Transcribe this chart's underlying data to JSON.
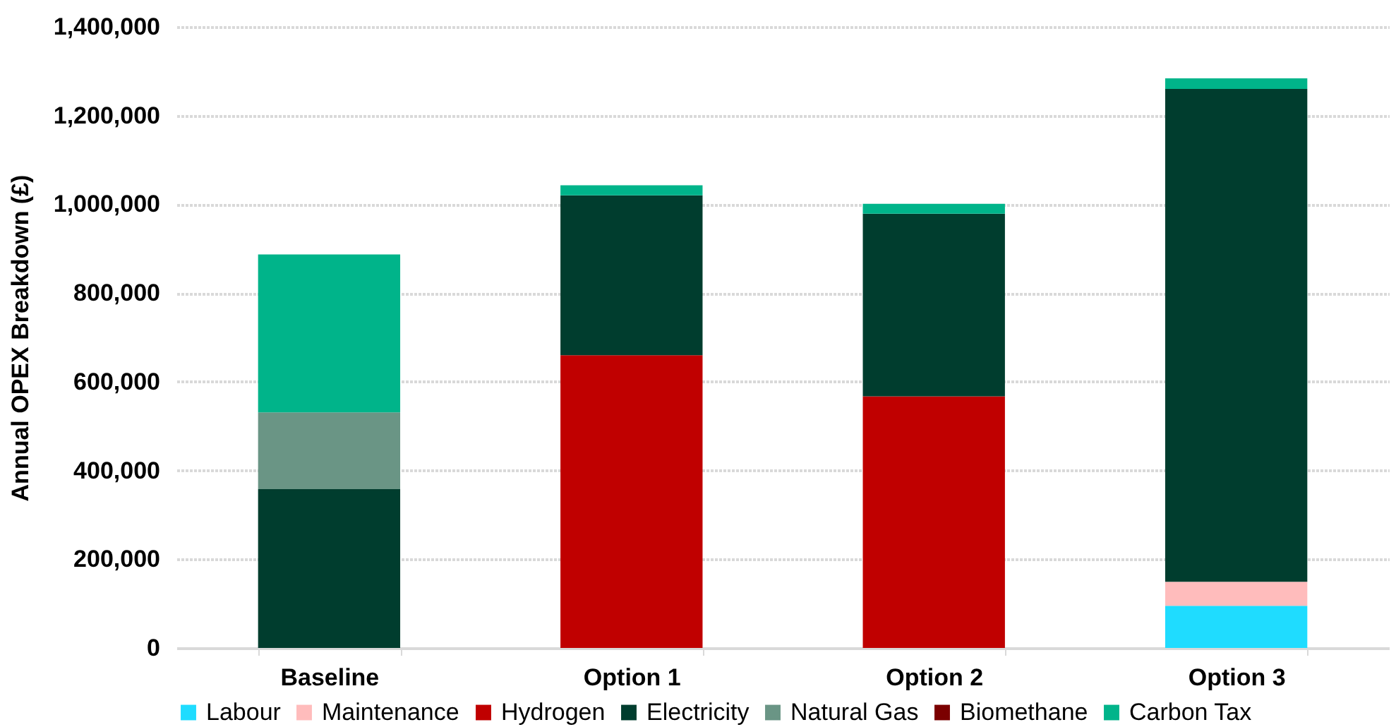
{
  "chart_data": {
    "type": "bar",
    "stacked": true,
    "ylabel": "Annual OPEX Breakdown (£)",
    "categories": [
      "Baseline",
      "Option 1",
      "Option 2",
      "Option 3"
    ],
    "series": [
      {
        "name": "Labour",
        "color": "#1fdcff",
        "values": [
          0,
          0,
          0,
          95000
        ]
      },
      {
        "name": "Maintenance",
        "color": "#ffbcbc",
        "values": [
          0,
          0,
          0,
          54000
        ]
      },
      {
        "name": "Hydrogen",
        "color": "#c00000",
        "values": [
          0,
          660000,
          567000,
          0
        ]
      },
      {
        "name": "Electricity",
        "color": "#003d2e",
        "values": [
          358000,
          360000,
          412000,
          1111000
        ]
      },
      {
        "name": "Natural Gas",
        "color": "#6a9585",
        "values": [
          173000,
          0,
          0,
          0
        ]
      },
      {
        "name": "Biomethane",
        "color": "#7b0000",
        "values": [
          0,
          0,
          0,
          0
        ]
      },
      {
        "name": "Carbon Tax",
        "color": "#00b48a",
        "values": [
          356000,
          23000,
          22000,
          24000
        ]
      }
    ],
    "ylim": [
      0,
      1400000
    ],
    "yticks": [
      0,
      {
        "value": 200000,
        "label": "200,000"
      },
      {
        "value": 400000,
        "label": "400,000"
      },
      {
        "value": 600000,
        "label": "600,000"
      },
      {
        "value": 800000,
        "label": "800,000"
      },
      {
        "value": 1000000,
        "label": "1,000,000"
      },
      {
        "value": 1200000,
        "label": "1,200,000"
      },
      {
        "value": 1400000,
        "label": "1,400,000"
      }
    ],
    "grid": "y",
    "legend": "bottom"
  }
}
